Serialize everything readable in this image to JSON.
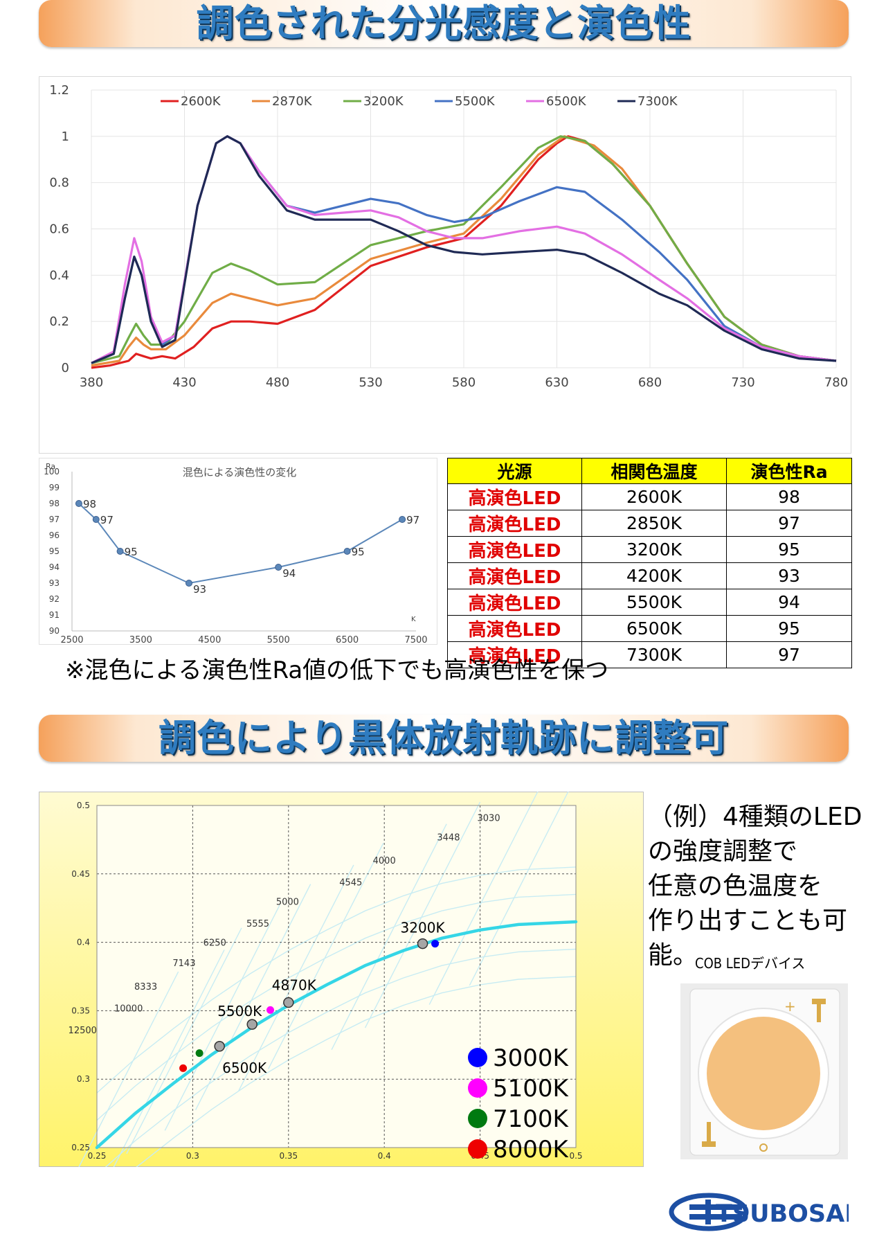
{
  "banners": {
    "top": "調色された分光感度と演色性",
    "middle": "調色により黒体放射軌跡に調整可"
  },
  "spectrum": {
    "chart_data": {
      "type": "line",
      "x_ticks": [
        "380",
        "430",
        "480",
        "530",
        "580",
        "630",
        "680",
        "730",
        "780"
      ],
      "y_ticks": [
        "0",
        "0.2",
        "0.4",
        "0.6",
        "0.8",
        "1",
        "1.2"
      ],
      "xlim": [
        380,
        780
      ],
      "ylim": [
        0,
        1.2
      ],
      "grid": true,
      "legend_position": "top",
      "series": [
        {
          "name": "2600K",
          "color": "#e02020",
          "points": [
            [
              380,
              0
            ],
            [
              390,
              0.01
            ],
            [
              400,
              0.03
            ],
            [
              404,
              0.06
            ],
            [
              408,
              0.05
            ],
            [
              412,
              0.04
            ],
            [
              418,
              0.05
            ],
            [
              425,
              0.04
            ],
            [
              435,
              0.09
            ],
            [
              445,
              0.17
            ],
            [
              455,
              0.2
            ],
            [
              465,
              0.2
            ],
            [
              480,
              0.19
            ],
            [
              500,
              0.25
            ],
            [
              530,
              0.44
            ],
            [
              560,
              0.52
            ],
            [
              580,
              0.56
            ],
            [
              600,
              0.7
            ],
            [
              620,
              0.9
            ],
            [
              630,
              0.97
            ],
            [
              636,
              1.0
            ],
            [
              645,
              0.98
            ],
            [
              660,
              0.88
            ],
            [
              680,
              0.7
            ],
            [
              700,
              0.45
            ],
            [
              720,
              0.22
            ],
            [
              740,
              0.1
            ],
            [
              760,
              0.05
            ],
            [
              780,
              0.03
            ]
          ]
        },
        {
          "name": "2870K",
          "color": "#e98a3c",
          "points": [
            [
              380,
              0.01
            ],
            [
              395,
              0.03
            ],
            [
              400,
              0.09
            ],
            [
              404,
              0.13
            ],
            [
              408,
              0.1
            ],
            [
              412,
              0.08
            ],
            [
              420,
              0.08
            ],
            [
              430,
              0.14
            ],
            [
              445,
              0.28
            ],
            [
              455,
              0.32
            ],
            [
              465,
              0.3
            ],
            [
              480,
              0.27
            ],
            [
              500,
              0.3
            ],
            [
              530,
              0.47
            ],
            [
              560,
              0.54
            ],
            [
              580,
              0.58
            ],
            [
              600,
              0.73
            ],
            [
              620,
              0.92
            ],
            [
              634,
              1.0
            ],
            [
              650,
              0.96
            ],
            [
              665,
              0.86
            ],
            [
              680,
              0.7
            ],
            [
              700,
              0.45
            ],
            [
              720,
              0.22
            ],
            [
              740,
              0.1
            ],
            [
              760,
              0.05
            ],
            [
              780,
              0.03
            ]
          ]
        },
        {
          "name": "3200K",
          "color": "#70ad47",
          "points": [
            [
              380,
              0.02
            ],
            [
              395,
              0.05
            ],
            [
              400,
              0.13
            ],
            [
              404,
              0.19
            ],
            [
              408,
              0.14
            ],
            [
              412,
              0.1
            ],
            [
              420,
              0.1
            ],
            [
              430,
              0.2
            ],
            [
              445,
              0.41
            ],
            [
              455,
              0.45
            ],
            [
              465,
              0.42
            ],
            [
              480,
              0.36
            ],
            [
              500,
              0.37
            ],
            [
              530,
              0.53
            ],
            [
              560,
              0.59
            ],
            [
              580,
              0.62
            ],
            [
              600,
              0.78
            ],
            [
              620,
              0.95
            ],
            [
              632,
              1.0
            ],
            [
              645,
              0.98
            ],
            [
              660,
              0.88
            ],
            [
              680,
              0.7
            ],
            [
              700,
              0.45
            ],
            [
              720,
              0.22
            ],
            [
              740,
              0.1
            ],
            [
              760,
              0.05
            ],
            [
              780,
              0.03
            ]
          ]
        },
        {
          "name": "5500K",
          "color": "#4472c4",
          "points": [
            [
              380,
              0.02
            ],
            [
              392,
              0.06
            ],
            [
              398,
              0.3
            ],
            [
              403,
              0.48
            ],
            [
              407,
              0.4
            ],
            [
              412,
              0.2
            ],
            [
              418,
              0.1
            ],
            [
              425,
              0.14
            ],
            [
              437,
              0.7
            ],
            [
              447,
              0.97
            ],
            [
              453,
              1.0
            ],
            [
              460,
              0.97
            ],
            [
              470,
              0.85
            ],
            [
              485,
              0.7
            ],
            [
              500,
              0.67
            ],
            [
              515,
              0.7
            ],
            [
              530,
              0.73
            ],
            [
              545,
              0.71
            ],
            [
              560,
              0.66
            ],
            [
              575,
              0.63
            ],
            [
              590,
              0.65
            ],
            [
              610,
              0.72
            ],
            [
              630,
              0.78
            ],
            [
              645,
              0.76
            ],
            [
              665,
              0.64
            ],
            [
              685,
              0.5
            ],
            [
              700,
              0.38
            ],
            [
              720,
              0.18
            ],
            [
              740,
              0.09
            ],
            [
              760,
              0.05
            ],
            [
              780,
              0.03
            ]
          ]
        },
        {
          "name": "6500K",
          "color": "#e36fe3",
          "points": [
            [
              380,
              0.02
            ],
            [
              392,
              0.07
            ],
            [
              398,
              0.36
            ],
            [
              403,
              0.56
            ],
            [
              407,
              0.46
            ],
            [
              412,
              0.22
            ],
            [
              418,
              0.11
            ],
            [
              425,
              0.14
            ],
            [
              437,
              0.7
            ],
            [
              447,
              0.97
            ],
            [
              453,
              1.0
            ],
            [
              460,
              0.97
            ],
            [
              470,
              0.85
            ],
            [
              485,
              0.7
            ],
            [
              500,
              0.66
            ],
            [
              515,
              0.67
            ],
            [
              530,
              0.68
            ],
            [
              545,
              0.65
            ],
            [
              560,
              0.59
            ],
            [
              575,
              0.56
            ],
            [
              590,
              0.56
            ],
            [
              610,
              0.59
            ],
            [
              630,
              0.61
            ],
            [
              645,
              0.58
            ],
            [
              665,
              0.49
            ],
            [
              685,
              0.38
            ],
            [
              700,
              0.3
            ],
            [
              720,
              0.17
            ],
            [
              740,
              0.09
            ],
            [
              760,
              0.05
            ],
            [
              780,
              0.03
            ]
          ]
        },
        {
          "name": "7300K",
          "color": "#1f2a55",
          "points": [
            [
              380,
              0.02
            ],
            [
              392,
              0.06
            ],
            [
              398,
              0.3
            ],
            [
              403,
              0.48
            ],
            [
              407,
              0.4
            ],
            [
              412,
              0.2
            ],
            [
              418,
              0.09
            ],
            [
              425,
              0.12
            ],
            [
              437,
              0.7
            ],
            [
              447,
              0.97
            ],
            [
              453,
              1.0
            ],
            [
              460,
              0.97
            ],
            [
              470,
              0.83
            ],
            [
              485,
              0.68
            ],
            [
              500,
              0.64
            ],
            [
              515,
              0.64
            ],
            [
              530,
              0.64
            ],
            [
              545,
              0.59
            ],
            [
              560,
              0.53
            ],
            [
              575,
              0.5
            ],
            [
              590,
              0.49
            ],
            [
              610,
              0.5
            ],
            [
              630,
              0.51
            ],
            [
              645,
              0.49
            ],
            [
              665,
              0.41
            ],
            [
              685,
              0.32
            ],
            [
              700,
              0.27
            ],
            [
              720,
              0.16
            ],
            [
              740,
              0.08
            ],
            [
              760,
              0.04
            ],
            [
              780,
              0.03
            ]
          ]
        }
      ]
    }
  },
  "ra_chart": {
    "chart_data": {
      "type": "line",
      "title": "混色による演色性の変化",
      "ylabel": "Ra",
      "xlabel": "K",
      "x_ticks": [
        "2500",
        "3500",
        "4500",
        "5500",
        "6500",
        "7500"
      ],
      "y_ticks": [
        "90",
        "91",
        "92",
        "93",
        "94",
        "95",
        "96",
        "97",
        "98",
        "99",
        "100"
      ],
      "xlim": [
        2500,
        7500
      ],
      "ylim": [
        90,
        100
      ],
      "points": [
        [
          2600,
          98
        ],
        [
          2850,
          97
        ],
        [
          3200,
          95
        ],
        [
          4200,
          93
        ],
        [
          5500,
          94
        ],
        [
          6500,
          95
        ],
        [
          7300,
          97
        ]
      ],
      "labels": [
        "98",
        "97",
        "95",
        "93",
        "94",
        "95",
        "97"
      ],
      "color": "#5b87b9"
    }
  },
  "ra_table": {
    "headers": [
      "光源",
      "相関色温度",
      "演色性Ra"
    ],
    "rows": [
      [
        "高演色LED",
        "2600K",
        "98"
      ],
      [
        "高演色LED",
        "2850K",
        "97"
      ],
      [
        "高演色LED",
        "3200K",
        "95"
      ],
      [
        "高演色LED",
        "4200K",
        "93"
      ],
      [
        "高演色LED",
        "5500K",
        "94"
      ],
      [
        "高演色LED",
        "6500K",
        "95"
      ],
      [
        "高演色LED",
        "7300K",
        "97"
      ]
    ]
  },
  "note": "※混色による演色性Ra値の低下でも高演色性を保つ",
  "cie": {
    "chart_data": {
      "type": "scatter",
      "x_ticks": [
        "0.25",
        "0.3",
        "0.35",
        "0.4",
        "0.45",
        "0.5"
      ],
      "y_ticks": [
        "0.25",
        "0.3",
        "0.35",
        "0.4",
        "0.45",
        "0.5"
      ],
      "xlim": [
        0.25,
        0.5
      ],
      "ylim": [
        0.25,
        0.5
      ],
      "grid": true,
      "cct_labels": [
        {
          "t": "3030",
          "x": 0.4545,
          "y": 0.4885
        },
        {
          "t": "3448",
          "x": 0.4335,
          "y": 0.4745
        },
        {
          "t": "4000",
          "x": 0.4,
          "y": 0.4575
        },
        {
          "t": "4545",
          "x": 0.3825,
          "y": 0.4415
        },
        {
          "t": "5000",
          "x": 0.3495,
          "y": 0.4275
        },
        {
          "t": "5555",
          "x": 0.334,
          "y": 0.4115
        },
        {
          "t": "6250",
          "x": 0.3115,
          "y": 0.3975
        },
        {
          "t": "7143",
          "x": 0.2955,
          "y": 0.3825
        },
        {
          "t": "8333",
          "x": 0.2755,
          "y": 0.3655
        },
        {
          "t": "10000",
          "x": 0.2665,
          "y": 0.3495
        },
        {
          "t": "12500",
          "x": 0.2425,
          "y": 0.3335
        }
      ],
      "locus": [
        [
          0.25,
          0.25
        ],
        [
          0.27,
          0.275
        ],
        [
          0.29,
          0.297
        ],
        [
          0.31,
          0.318
        ],
        [
          0.33,
          0.337
        ],
        [
          0.35,
          0.354
        ],
        [
          0.37,
          0.369
        ],
        [
          0.39,
          0.383
        ],
        [
          0.41,
          0.394
        ],
        [
          0.43,
          0.403
        ],
        [
          0.45,
          0.409
        ],
        [
          0.47,
          0.413
        ],
        [
          0.5,
          0.415
        ]
      ],
      "mix_points": [
        {
          "label": "3200K",
          "x": 0.42,
          "y": 0.399
        },
        {
          "label": "4870K",
          "x": 0.35,
          "y": 0.356
        },
        {
          "label": "5500K",
          "x": 0.331,
          "y": 0.34
        },
        {
          "label": "",
          "x": 0.314,
          "y": 0.324
        },
        {
          "label": "6500K",
          "x": 0.314,
          "y": 0.324
        }
      ],
      "led_points": [
        {
          "name": "3000K",
          "color": "#0000ff",
          "x": 0.4265,
          "y": 0.399
        },
        {
          "name": "5100K",
          "color": "#ff00ff",
          "x": 0.3405,
          "y": 0.3505
        },
        {
          "name": "7100K",
          "color": "#007a10",
          "x": 0.3035,
          "y": 0.319
        },
        {
          "name": "8000K",
          "color": "#ee0000",
          "x": 0.295,
          "y": 0.308
        }
      ]
    }
  },
  "description": [
    "（例）4種類のLED",
    "の強度調整で",
    "任意の色温度を",
    "作り出すことも可能。"
  ],
  "cob_caption": "COB LEDデバイス",
  "cob_marks": {
    "plus": "+"
  },
  "logo": {
    "text": "TSUBOSAKA",
    "color": "#1d4fa3"
  }
}
